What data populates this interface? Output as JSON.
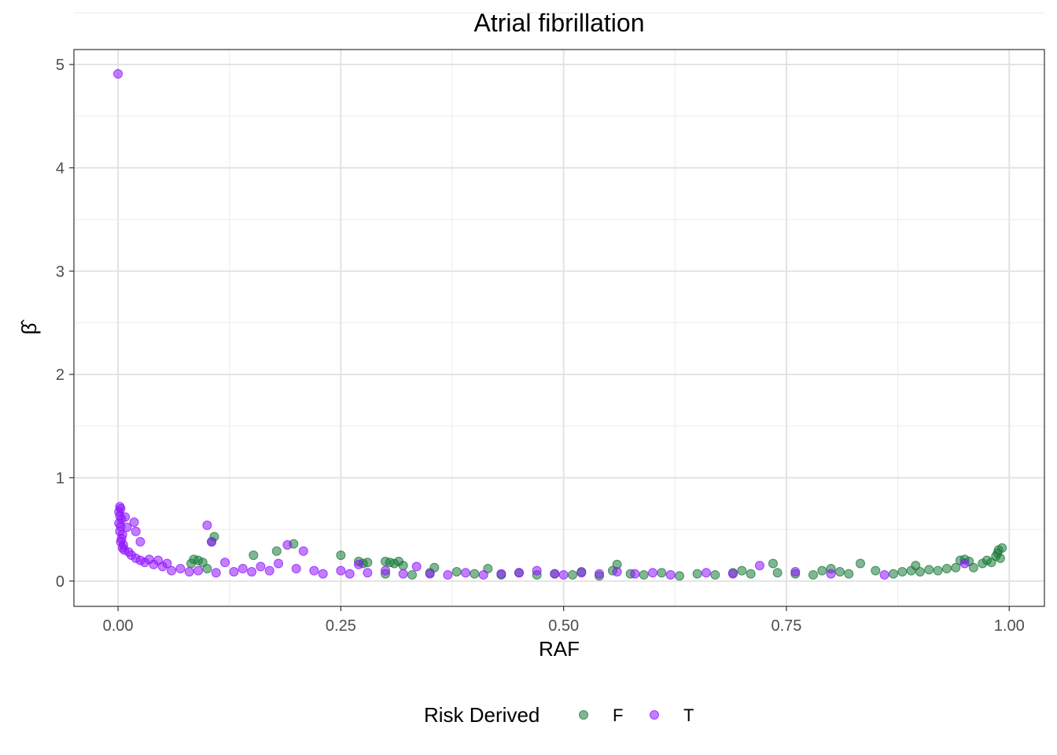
{
  "chart_data": {
    "type": "scatter",
    "title": "Atrial fibrillation",
    "xlabel": "RAF",
    "ylabel": "β̂",
    "xlim": [
      -0.0495,
      1.0395
    ],
    "ylim": [
      -0.245,
      5.145
    ],
    "x_ticks": [
      0.0,
      0.25,
      0.5,
      0.75,
      1.0
    ],
    "x_tick_labels": [
      "0.00",
      "0.25",
      "0.50",
      "0.75",
      "1.00"
    ],
    "y_ticks": [
      0,
      1,
      2,
      3,
      4,
      5
    ],
    "y_tick_labels": [
      "0",
      "1",
      "2",
      "3",
      "4",
      "5"
    ],
    "grid": true,
    "legend": {
      "title": "Risk Derived",
      "position": "bottom"
    },
    "series": [
      {
        "name": "F",
        "color": "#1a7a3a",
        "points": [
          [
            0.085,
            0.21
          ],
          [
            0.09,
            0.2
          ],
          [
            0.082,
            0.17
          ],
          [
            0.095,
            0.18
          ],
          [
            0.1,
            0.12
          ],
          [
            0.108,
            0.43
          ],
          [
            0.105,
            0.38
          ],
          [
            0.152,
            0.25
          ],
          [
            0.178,
            0.29
          ],
          [
            0.197,
            0.36
          ],
          [
            0.25,
            0.25
          ],
          [
            0.27,
            0.19
          ],
          [
            0.275,
            0.17
          ],
          [
            0.28,
            0.18
          ],
          [
            0.3,
            0.19
          ],
          [
            0.305,
            0.18
          ],
          [
            0.31,
            0.17
          ],
          [
            0.315,
            0.19
          ],
          [
            0.32,
            0.15
          ],
          [
            0.3,
            0.07
          ],
          [
            0.33,
            0.06
          ],
          [
            0.35,
            0.08
          ],
          [
            0.355,
            0.13
          ],
          [
            0.38,
            0.09
          ],
          [
            0.4,
            0.07
          ],
          [
            0.415,
            0.12
          ],
          [
            0.43,
            0.06
          ],
          [
            0.45,
            0.08
          ],
          [
            0.47,
            0.06
          ],
          [
            0.49,
            0.07
          ],
          [
            0.51,
            0.06
          ],
          [
            0.52,
            0.09
          ],
          [
            0.54,
            0.05
          ],
          [
            0.555,
            0.1
          ],
          [
            0.56,
            0.16
          ],
          [
            0.575,
            0.07
          ],
          [
            0.59,
            0.06
          ],
          [
            0.61,
            0.08
          ],
          [
            0.63,
            0.05
          ],
          [
            0.65,
            0.07
          ],
          [
            0.67,
            0.06
          ],
          [
            0.69,
            0.08
          ],
          [
            0.7,
            0.1
          ],
          [
            0.71,
            0.07
          ],
          [
            0.735,
            0.17
          ],
          [
            0.74,
            0.08
          ],
          [
            0.76,
            0.07
          ],
          [
            0.78,
            0.06
          ],
          [
            0.79,
            0.1
          ],
          [
            0.8,
            0.12
          ],
          [
            0.81,
            0.09
          ],
          [
            0.82,
            0.07
          ],
          [
            0.833,
            0.17
          ],
          [
            0.85,
            0.1
          ],
          [
            0.87,
            0.07
          ],
          [
            0.88,
            0.09
          ],
          [
            0.89,
            0.1
          ],
          [
            0.895,
            0.15
          ],
          [
            0.9,
            0.09
          ],
          [
            0.91,
            0.11
          ],
          [
            0.92,
            0.1
          ],
          [
            0.93,
            0.12
          ],
          [
            0.94,
            0.13
          ],
          [
            0.945,
            0.2
          ],
          [
            0.95,
            0.21
          ],
          [
            0.955,
            0.19
          ],
          [
            0.96,
            0.13
          ],
          [
            0.97,
            0.17
          ],
          [
            0.975,
            0.2
          ],
          [
            0.98,
            0.18
          ],
          [
            0.985,
            0.24
          ],
          [
            0.987,
            0.27
          ],
          [
            0.99,
            0.22
          ],
          [
            0.992,
            0.32
          ],
          [
            0.988,
            0.3
          ]
        ]
      },
      {
        "name": "T",
        "color": "#8f14ff",
        "points": [
          [
            0.0,
            4.91
          ],
          [
            0.002,
            0.72
          ],
          [
            0.003,
            0.7
          ],
          [
            0.001,
            0.67
          ],
          [
            0.002,
            0.63
          ],
          [
            0.004,
            0.6
          ],
          [
            0.001,
            0.56
          ],
          [
            0.003,
            0.53
          ],
          [
            0.002,
            0.48
          ],
          [
            0.005,
            0.45
          ],
          [
            0.004,
            0.41
          ],
          [
            0.003,
            0.38
          ],
          [
            0.006,
            0.35
          ],
          [
            0.005,
            0.32
          ],
          [
            0.007,
            0.3
          ],
          [
            0.008,
            0.62
          ],
          [
            0.01,
            0.52
          ],
          [
            0.012,
            0.28
          ],
          [
            0.015,
            0.25
          ],
          [
            0.018,
            0.57
          ],
          [
            0.02,
            0.48
          ],
          [
            0.02,
            0.22
          ],
          [
            0.025,
            0.38
          ],
          [
            0.025,
            0.2
          ],
          [
            0.03,
            0.18
          ],
          [
            0.035,
            0.21
          ],
          [
            0.04,
            0.16
          ],
          [
            0.045,
            0.2
          ],
          [
            0.05,
            0.14
          ],
          [
            0.055,
            0.17
          ],
          [
            0.06,
            0.1
          ],
          [
            0.07,
            0.12
          ],
          [
            0.08,
            0.09
          ],
          [
            0.09,
            0.1
          ],
          [
            0.1,
            0.54
          ],
          [
            0.105,
            0.38
          ],
          [
            0.11,
            0.08
          ],
          [
            0.12,
            0.18
          ],
          [
            0.13,
            0.09
          ],
          [
            0.14,
            0.12
          ],
          [
            0.15,
            0.09
          ],
          [
            0.16,
            0.14
          ],
          [
            0.17,
            0.1
          ],
          [
            0.18,
            0.17
          ],
          [
            0.19,
            0.35
          ],
          [
            0.2,
            0.12
          ],
          [
            0.208,
            0.29
          ],
          [
            0.22,
            0.1
          ],
          [
            0.23,
            0.07
          ],
          [
            0.25,
            0.1
          ],
          [
            0.26,
            0.07
          ],
          [
            0.27,
            0.16
          ],
          [
            0.28,
            0.08
          ],
          [
            0.3,
            0.1
          ],
          [
            0.32,
            0.07
          ],
          [
            0.335,
            0.14
          ],
          [
            0.35,
            0.07
          ],
          [
            0.37,
            0.06
          ],
          [
            0.39,
            0.08
          ],
          [
            0.41,
            0.06
          ],
          [
            0.43,
            0.07
          ],
          [
            0.45,
            0.08
          ],
          [
            0.47,
            0.1
          ],
          [
            0.49,
            0.07
          ],
          [
            0.5,
            0.06
          ],
          [
            0.52,
            0.08
          ],
          [
            0.54,
            0.07
          ],
          [
            0.56,
            0.09
          ],
          [
            0.58,
            0.07
          ],
          [
            0.6,
            0.08
          ],
          [
            0.62,
            0.06
          ],
          [
            0.66,
            0.08
          ],
          [
            0.69,
            0.07
          ],
          [
            0.72,
            0.15
          ],
          [
            0.76,
            0.09
          ],
          [
            0.8,
            0.07
          ],
          [
            0.86,
            0.06
          ],
          [
            0.95,
            0.17
          ]
        ]
      }
    ]
  }
}
